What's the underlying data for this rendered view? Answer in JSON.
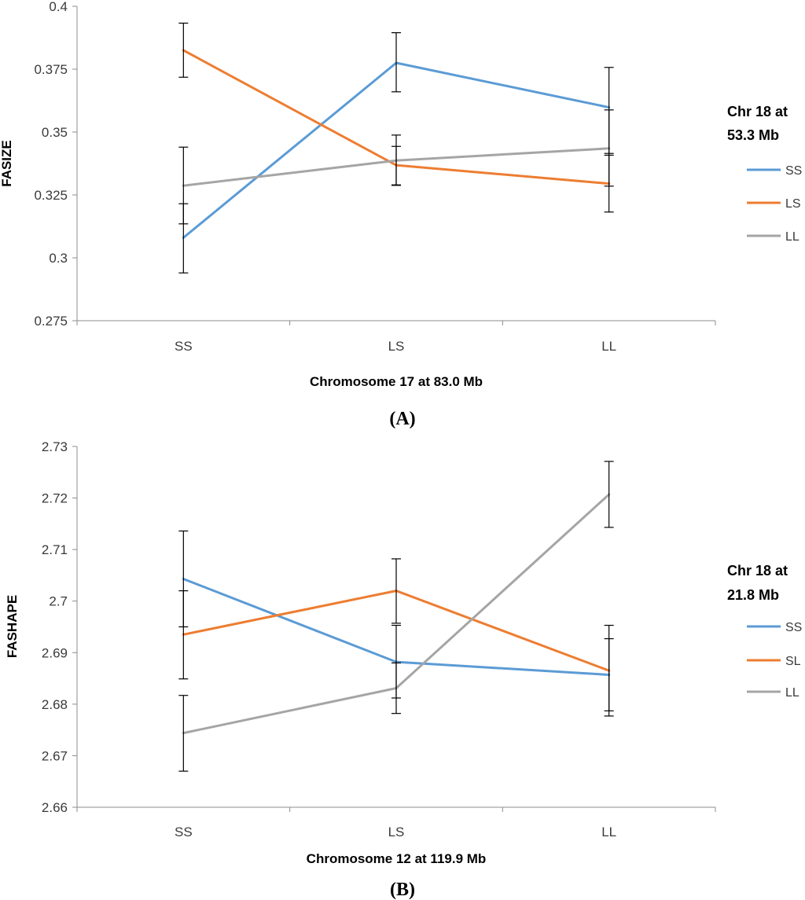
{
  "chart_data": [
    {
      "type": "line",
      "panel_label": "(A)",
      "xlabel": "Chromosome 17 at 83.0 Mb",
      "ylabel": "FASIZE",
      "categories": [
        "SS",
        "LS",
        "LL"
      ],
      "ylim": [
        0.275,
        0.4
      ],
      "yticks": [
        "0.4",
        "0.375",
        "0.35",
        "0.325",
        "0.3",
        "0.275"
      ],
      "grid": false,
      "legend": {
        "title_lines": [
          "Chr 18 at",
          "53.3  Mb"
        ],
        "position": "right"
      },
      "series": [
        {
          "name": "SS",
          "color": "#5b9bd5",
          "values": [
            0.308,
            0.3775,
            0.3598
          ],
          "err_low": [
            0.294,
            0.366,
            0.3415
          ],
          "err_high": [
            0.3215,
            0.3895,
            0.3757
          ]
        },
        {
          "name": "LS",
          "color": "#ed7d31",
          "values": [
            0.3825,
            0.3368,
            0.3295
          ],
          "err_low": [
            0.3718,
            0.329,
            0.3182
          ],
          "err_high": [
            0.3933,
            0.3443,
            0.3408
          ]
        },
        {
          "name": "LL",
          "color": "#a5a5a5",
          "values": [
            0.3287,
            0.3387,
            0.3435
          ],
          "err_low": [
            0.3135,
            0.3288,
            0.3285
          ],
          "err_high": [
            0.344,
            0.3488,
            0.3588
          ]
        }
      ]
    },
    {
      "type": "line",
      "panel_label": "(B)",
      "xlabel": "Chromosome 12 at 119.9 Mb",
      "ylabel": "FASHAPE",
      "categories": [
        "SS",
        "LS",
        "LL"
      ],
      "ylim": [
        2.66,
        2.73
      ],
      "yticks": [
        "2.73",
        "2.72",
        "2.71",
        "2.7",
        "2.69",
        "2.68",
        "2.67",
        "2.66"
      ],
      "grid": false,
      "legend": {
        "title_lines": [
          "Chr 18 at",
          "21.8 Mb"
        ],
        "position": "right"
      },
      "series": [
        {
          "name": "SS",
          "color": "#5b9bd5",
          "values": [
            2.7043,
            2.6882,
            2.6857
          ],
          "err_low": [
            2.695,
            2.6812,
            2.6787
          ],
          "err_high": [
            2.7136,
            2.6953,
            2.6927
          ]
        },
        {
          "name": "SL",
          "color": "#ed7d31",
          "values": [
            2.6935,
            2.702,
            2.6865
          ],
          "err_low": [
            2.6849,
            2.6957,
            2.6777
          ],
          "err_high": [
            2.702,
            2.7082,
            2.6953
          ]
        },
        {
          "name": "LL",
          "color": "#a5a5a5",
          "values": [
            2.6744,
            2.6831,
            2.7207
          ],
          "err_low": [
            2.667,
            2.6782,
            2.7143
          ],
          "err_high": [
            2.6817,
            2.688,
            2.7271
          ]
        }
      ]
    }
  ]
}
